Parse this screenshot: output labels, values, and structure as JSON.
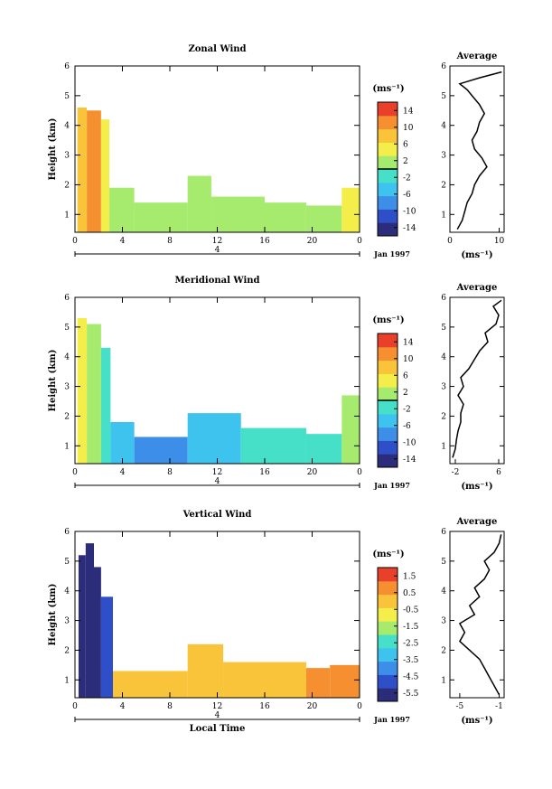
{
  "chart_data": [
    {
      "type": "heatmap",
      "title": "Zonal Wind",
      "ylabel": "Height (km)",
      "xlabel": "",
      "x_ticks": [
        "0",
        "4",
        "8",
        "12",
        "16",
        "20",
        "0"
      ],
      "y_ticks": [
        "1",
        "2",
        "3",
        "4",
        "5",
        "6"
      ],
      "xlim": [
        0,
        24
      ],
      "ylim": [
        0.4,
        6
      ],
      "day_label": "4",
      "date_label": "Jan 1997",
      "colorbar": {
        "unit": "(ms⁻¹)",
        "ticks": [
          "14",
          "10",
          "6",
          "2",
          "-2",
          "-6",
          "-10",
          "-14"
        ],
        "range": [
          -16,
          16
        ],
        "zero_line": 0
      },
      "cells": [
        [
          0.2,
          1.0,
          4.6,
          8
        ],
        [
          1.0,
          2.2,
          4.5,
          11
        ],
        [
          2.2,
          2.9,
          4.2,
          6
        ],
        [
          2.9,
          5.0,
          1.9,
          3
        ],
        [
          5.0,
          9.5,
          1.4,
          1
        ],
        [
          9.5,
          11.5,
          2.3,
          2
        ],
        [
          11.5,
          16.0,
          1.6,
          1
        ],
        [
          16.0,
          19.5,
          1.4,
          0
        ],
        [
          19.5,
          22.5,
          1.3,
          2
        ],
        [
          22.5,
          24.0,
          1.9,
          4
        ]
      ],
      "profile": {
        "title": "Average",
        "xlabel": "(ms⁻¹)",
        "x_ticks": [
          "0",
          "10"
        ],
        "xlim": [
          0,
          11
        ],
        "height": [
          0.5,
          0.8,
          1.1,
          1.4,
          1.7,
          2.0,
          2.3,
          2.6,
          2.9,
          3.2,
          3.5,
          3.8,
          4.1,
          4.4,
          4.7,
          5.0,
          5.2,
          5.4,
          5.6,
          5.8
        ],
        "values": [
          1.5,
          2.5,
          3.0,
          3.5,
          4.5,
          5.0,
          6.0,
          7.5,
          6.5,
          5.0,
          4.5,
          5.5,
          6.0,
          7.0,
          6.0,
          4.5,
          3.5,
          2.0,
          6.0,
          10.5
        ]
      }
    },
    {
      "type": "heatmap",
      "title": "Meridional Wind",
      "ylabel": "Height (km)",
      "xlabel": "",
      "x_ticks": [
        "0",
        "4",
        "8",
        "12",
        "16",
        "20",
        "0"
      ],
      "y_ticks": [
        "1",
        "2",
        "3",
        "4",
        "5",
        "6"
      ],
      "xlim": [
        0,
        24
      ],
      "ylim": [
        0.4,
        6
      ],
      "day_label": "4",
      "date_label": "Jan 1997",
      "colorbar": {
        "unit": "(ms⁻¹)",
        "ticks": [
          "14",
          "10",
          "6",
          "2",
          "-2",
          "-6",
          "-10",
          "-14"
        ],
        "range": [
          -16,
          16
        ],
        "zero_line": 0
      },
      "cells": [
        [
          0.2,
          1.0,
          5.3,
          4
        ],
        [
          1.0,
          2.2,
          5.1,
          0
        ],
        [
          2.2,
          3.0,
          4.3,
          -3
        ],
        [
          3.0,
          5.0,
          1.8,
          -6
        ],
        [
          5.0,
          9.5,
          1.3,
          -9
        ],
        [
          9.5,
          14.0,
          2.1,
          -5
        ],
        [
          14.0,
          19.5,
          1.6,
          -3
        ],
        [
          19.5,
          22.5,
          1.4,
          -2
        ],
        [
          22.5,
          24.0,
          2.7,
          0
        ]
      ],
      "profile": {
        "title": "Average",
        "xlabel": "(ms⁻¹)",
        "x_ticks": [
          "-2",
          "6"
        ],
        "xlim": [
          -3,
          7
        ],
        "height": [
          0.6,
          0.9,
          1.2,
          1.5,
          1.8,
          2.1,
          2.4,
          2.7,
          3.0,
          3.3,
          3.6,
          3.9,
          4.2,
          4.5,
          4.8,
          5.1,
          5.4,
          5.7,
          5.9
        ],
        "values": [
          -2.5,
          -2.0,
          -1.8,
          -1.5,
          -1.0,
          -1.0,
          -0.5,
          -1.5,
          -0.5,
          -1.0,
          0.5,
          1.5,
          2.5,
          4.0,
          3.5,
          5.5,
          6.0,
          5.0,
          6.5
        ]
      }
    },
    {
      "type": "heatmap",
      "title": "Vertical Wind",
      "ylabel": "Height (km)",
      "xlabel": "Local Time",
      "x_ticks": [
        "0",
        "4",
        "8",
        "12",
        "16",
        "20",
        "0"
      ],
      "y_ticks": [
        "1",
        "2",
        "3",
        "4",
        "5",
        "6"
      ],
      "xlim": [
        0,
        24
      ],
      "ylim": [
        0.4,
        6
      ],
      "day_label": "4",
      "date_label": "Jan 1997",
      "colorbar": {
        "unit": "(ms⁻¹)",
        "ticks": [
          "1.5",
          "0.5",
          "-0.5",
          "-1.5",
          "-2.5",
          "-3.5",
          "-4.5",
          "-5.5"
        ],
        "range": [
          -6,
          2
        ],
        "zero_line": null
      },
      "cells": [
        [
          0.3,
          0.9,
          5.2,
          -5.5
        ],
        [
          0.9,
          1.6,
          5.6,
          -5.8
        ],
        [
          1.6,
          2.2,
          4.8,
          -5.2
        ],
        [
          2.2,
          3.2,
          3.8,
          -4.5
        ],
        [
          3.2,
          9.5,
          1.3,
          0.2
        ],
        [
          9.5,
          12.5,
          2.2,
          0.3
        ],
        [
          12.5,
          19.5,
          1.6,
          0.1
        ],
        [
          19.5,
          21.5,
          1.4,
          0.9
        ],
        [
          21.5,
          24.0,
          1.5,
          0.5
        ]
      ],
      "profile": {
        "title": "Average",
        "xlabel": "(ms⁻¹)",
        "x_ticks": [
          "-5",
          "-1"
        ],
        "xlim": [
          -6,
          -0.5
        ],
        "height": [
          0.5,
          0.8,
          1.1,
          1.4,
          1.7,
          2.0,
          2.3,
          2.6,
          2.9,
          3.2,
          3.5,
          3.8,
          4.1,
          4.4,
          4.7,
          5.0,
          5.3,
          5.6,
          5.9
        ],
        "values": [
          -1.0,
          -1.5,
          -2.0,
          -2.5,
          -3.0,
          -4.0,
          -5.0,
          -4.5,
          -5.0,
          -3.5,
          -4.0,
          -3.0,
          -3.5,
          -2.5,
          -2.0,
          -2.5,
          -1.5,
          -1.0,
          -0.8
        ]
      }
    }
  ]
}
